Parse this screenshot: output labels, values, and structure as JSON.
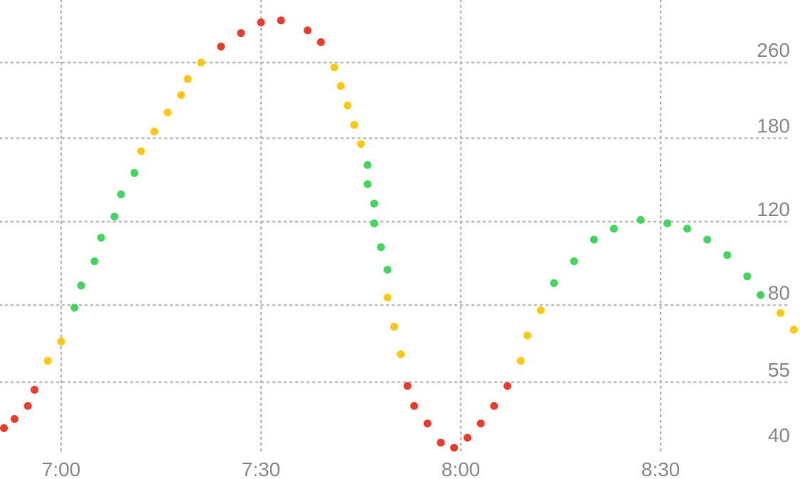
{
  "chart_data": {
    "type": "scatter",
    "title": "",
    "xlabel": "",
    "ylabel": "",
    "grid": true,
    "x_ticks": [
      "7:00",
      "7:30",
      "8:00",
      "8:30"
    ],
    "y_ticks": [
      40,
      55,
      80,
      120,
      180,
      260
    ],
    "xlim": [
      "6:51",
      "8:50"
    ],
    "ylim": [
      36,
      330
    ],
    "y_scale": "log",
    "colors": {
      "high": "#f03a2a",
      "elevated": "#ffc90a",
      "in_range": "#3fd85a"
    },
    "series": [
      {
        "points": [
          {
            "x": "6:51",
            "y": 44,
            "zone": "high"
          },
          {
            "x": "6:53",
            "y": 46,
            "zone": "high"
          },
          {
            "x": "6:55",
            "y": 49,
            "zone": "high"
          },
          {
            "x": "6:56",
            "y": 53,
            "zone": "high"
          },
          {
            "x": "6:58",
            "y": 61,
            "zone": "elevated"
          },
          {
            "x": "7:00",
            "y": 67,
            "zone": "elevated"
          },
          {
            "x": "7:02",
            "y": 79,
            "zone": "in_range"
          },
          {
            "x": "7:03",
            "y": 88,
            "zone": "in_range"
          },
          {
            "x": "7:05",
            "y": 99,
            "zone": "in_range"
          },
          {
            "x": "7:06",
            "y": 111,
            "zone": "in_range"
          },
          {
            "x": "7:08",
            "y": 123,
            "zone": "in_range"
          },
          {
            "x": "7:09",
            "y": 137,
            "zone": "in_range"
          },
          {
            "x": "7:11",
            "y": 152,
            "zone": "in_range"
          },
          {
            "x": "7:12",
            "y": 169,
            "zone": "elevated"
          },
          {
            "x": "7:14",
            "y": 186,
            "zone": "elevated"
          },
          {
            "x": "7:16",
            "y": 204,
            "zone": "elevated"
          },
          {
            "x": "7:18",
            "y": 222,
            "zone": "elevated"
          },
          {
            "x": "7:19",
            "y": 240,
            "zone": "elevated"
          },
          {
            "x": "7:21",
            "y": 260,
            "zone": "elevated"
          },
          {
            "x": "7:24",
            "y": 281,
            "zone": "high"
          },
          {
            "x": "7:27",
            "y": 300,
            "zone": "high"
          },
          {
            "x": "7:30",
            "y": 316,
            "zone": "high"
          },
          {
            "x": "7:33",
            "y": 319,
            "zone": "high"
          },
          {
            "x": "7:37",
            "y": 304,
            "zone": "high"
          },
          {
            "x": "7:39",
            "y": 287,
            "zone": "high"
          },
          {
            "x": "7:41",
            "y": 254,
            "zone": "elevated"
          },
          {
            "x": "7:42",
            "y": 232,
            "zone": "elevated"
          },
          {
            "x": "7:43",
            "y": 211,
            "zone": "elevated"
          },
          {
            "x": "7:44",
            "y": 192,
            "zone": "elevated"
          },
          {
            "x": "7:45",
            "y": 175,
            "zone": "elevated"
          },
          {
            "x": "7:46",
            "y": 158,
            "zone": "in_range"
          },
          {
            "x": "7:46",
            "y": 144,
            "zone": "in_range"
          },
          {
            "x": "7:47",
            "y": 131,
            "zone": "in_range"
          },
          {
            "x": "7:47",
            "y": 119,
            "zone": "in_range"
          },
          {
            "x": "7:48",
            "y": 106,
            "zone": "in_range"
          },
          {
            "x": "7:49",
            "y": 95,
            "zone": "in_range"
          },
          {
            "x": "7:49",
            "y": 83,
            "zone": "elevated"
          },
          {
            "x": "7:50",
            "y": 72,
            "zone": "elevated"
          },
          {
            "x": "7:51",
            "y": 63,
            "zone": "elevated"
          },
          {
            "x": "7:52",
            "y": 54,
            "zone": "high"
          },
          {
            "x": "7:53",
            "y": 49,
            "zone": "high"
          },
          {
            "x": "7:55",
            "y": 45,
            "zone": "high"
          },
          {
            "x": "7:57",
            "y": 41,
            "zone": "high"
          },
          {
            "x": "7:59",
            "y": 40,
            "zone": "high"
          },
          {
            "x": "8:01",
            "y": 42,
            "zone": "high"
          },
          {
            "x": "8:03",
            "y": 45,
            "zone": "high"
          },
          {
            "x": "8:05",
            "y": 49,
            "zone": "high"
          },
          {
            "x": "8:07",
            "y": 54,
            "zone": "high"
          },
          {
            "x": "8:09",
            "y": 61,
            "zone": "elevated"
          },
          {
            "x": "8:10",
            "y": 69,
            "zone": "elevated"
          },
          {
            "x": "8:12",
            "y": 78,
            "zone": "elevated"
          },
          {
            "x": "8:14",
            "y": 89,
            "zone": "in_range"
          },
          {
            "x": "8:17",
            "y": 99,
            "zone": "in_range"
          },
          {
            "x": "8:20",
            "y": 110,
            "zone": "in_range"
          },
          {
            "x": "8:23",
            "y": 116,
            "zone": "in_range"
          },
          {
            "x": "8:27",
            "y": 121,
            "zone": "in_range"
          },
          {
            "x": "8:31",
            "y": 119,
            "zone": "in_range"
          },
          {
            "x": "8:34",
            "y": 116,
            "zone": "in_range"
          },
          {
            "x": "8:37",
            "y": 110,
            "zone": "in_range"
          },
          {
            "x": "8:40",
            "y": 102,
            "zone": "in_range"
          },
          {
            "x": "8:43",
            "y": 92,
            "zone": "in_range"
          },
          {
            "x": "8:45",
            "y": 84,
            "zone": "in_range"
          },
          {
            "x": "8:48",
            "y": 77,
            "zone": "elevated"
          },
          {
            "x": "8:50",
            "y": 71,
            "zone": "elevated"
          }
        ]
      }
    ]
  }
}
